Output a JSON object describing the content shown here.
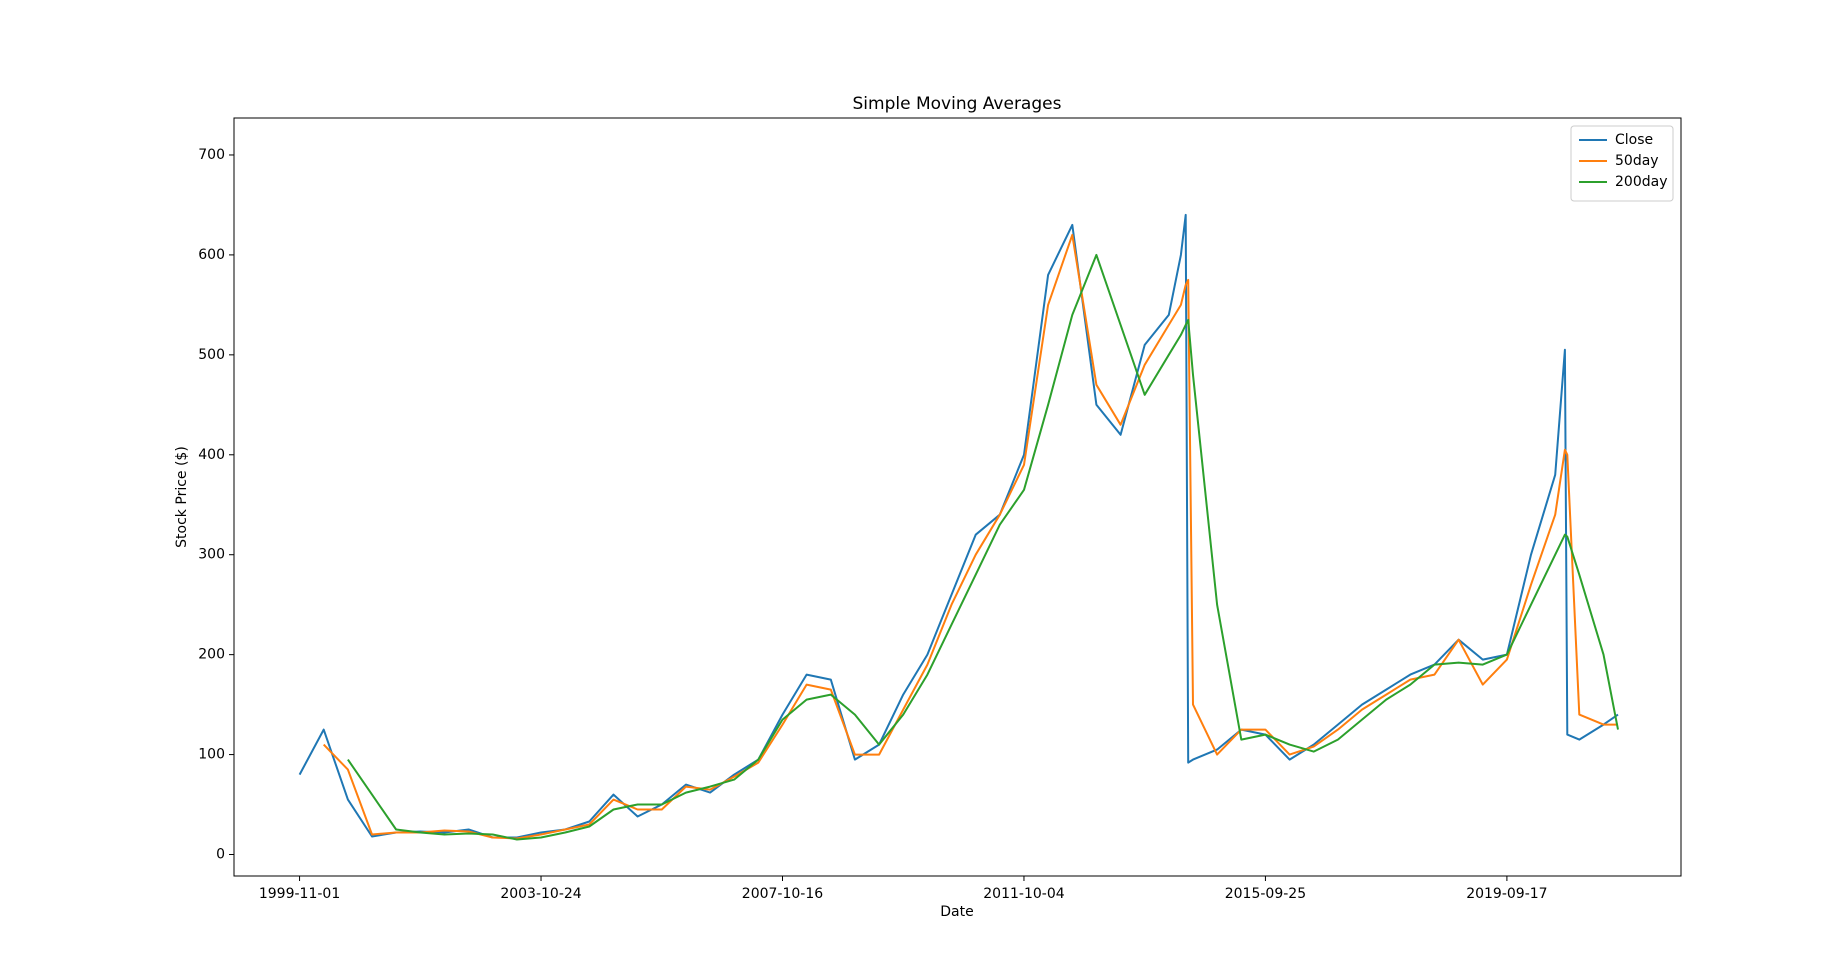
{
  "chart_data": {
    "type": "line",
    "title": "Simple Moving Averages",
    "xlabel": "Date",
    "ylabel": "Stock Price ($)",
    "x": [
      0,
      100,
      200,
      300,
      400,
      500,
      600,
      700,
      800,
      900,
      1000,
      1100,
      1200,
      1300,
      1400,
      1500,
      1600,
      1700,
      1800,
      1900,
      2000,
      2100,
      2200,
      2300,
      2400,
      2500,
      2600,
      2700,
      2800,
      2900,
      3000,
      3100,
      3200,
      3300,
      3400,
      3500,
      3600,
      3650,
      3670,
      3680,
      3700,
      3800,
      3900,
      4000,
      4100,
      4200,
      4300,
      4400,
      4500,
      4600,
      4700,
      4800,
      4900,
      5000,
      5100,
      5200,
      5240,
      5250,
      5300,
      5400,
      5460
    ],
    "series": [
      {
        "name": "Close",
        "color": "#1f77b4",
        "values": [
          80,
          125,
          55,
          18,
          22,
          23,
          22,
          25,
          17,
          17,
          22,
          25,
          33,
          60,
          38,
          50,
          70,
          62,
          80,
          95,
          140,
          180,
          175,
          95,
          110,
          160,
          200,
          260,
          320,
          340,
          400,
          580,
          630,
          450,
          420,
          510,
          540,
          600,
          640,
          92,
          95,
          105,
          125,
          120,
          95,
          110,
          130,
          150,
          165,
          180,
          190,
          215,
          195,
          200,
          300,
          380,
          505,
          120,
          115,
          130,
          140
        ]
      },
      {
        "name": "50day",
        "color": "#ff7f0e",
        "values": [
          null,
          110,
          85,
          20,
          22,
          22,
          24,
          23,
          17,
          16,
          20,
          25,
          30,
          55,
          45,
          45,
          68,
          65,
          78,
          92,
          130,
          170,
          165,
          100,
          100,
          145,
          190,
          250,
          300,
          340,
          390,
          550,
          620,
          470,
          430,
          490,
          530,
          550,
          570,
          575,
          150,
          100,
          125,
          125,
          100,
          108,
          125,
          145,
          160,
          175,
          180,
          215,
          170,
          195,
          270,
          340,
          405,
          400,
          140,
          130,
          130
        ]
      },
      {
        "name": "200day",
        "color": "#2ca02c",
        "values": [
          null,
          null,
          95,
          60,
          25,
          22,
          20,
          21,
          20,
          15,
          17,
          22,
          28,
          45,
          50,
          50,
          62,
          68,
          75,
          95,
          135,
          155,
          160,
          140,
          110,
          140,
          180,
          230,
          280,
          330,
          365,
          450,
          540,
          600,
          530,
          460,
          500,
          520,
          530,
          535,
          480,
          250,
          115,
          120,
          110,
          103,
          115,
          135,
          155,
          170,
          190,
          192,
          190,
          200,
          250,
          300,
          320,
          318,
          280,
          200,
          125
        ]
      }
    ],
    "xlim": [
      -271.5,
      5721
    ],
    "xticks": [
      {
        "value": 0,
        "label": "1999-11-01"
      },
      {
        "value": 1000,
        "label": "2003-10-24"
      },
      {
        "value": 2000,
        "label": "2007-10-16"
      },
      {
        "value": 3000,
        "label": "2011-10-04"
      },
      {
        "value": 4000,
        "label": "2015-09-25"
      },
      {
        "value": 5000,
        "label": "2019-09-17"
      }
    ],
    "ylim": [
      -21.5,
      737
    ],
    "yticks": [
      0,
      100,
      200,
      300,
      400,
      500,
      600,
      700
    ],
    "grid": false,
    "legend": "upper right"
  }
}
